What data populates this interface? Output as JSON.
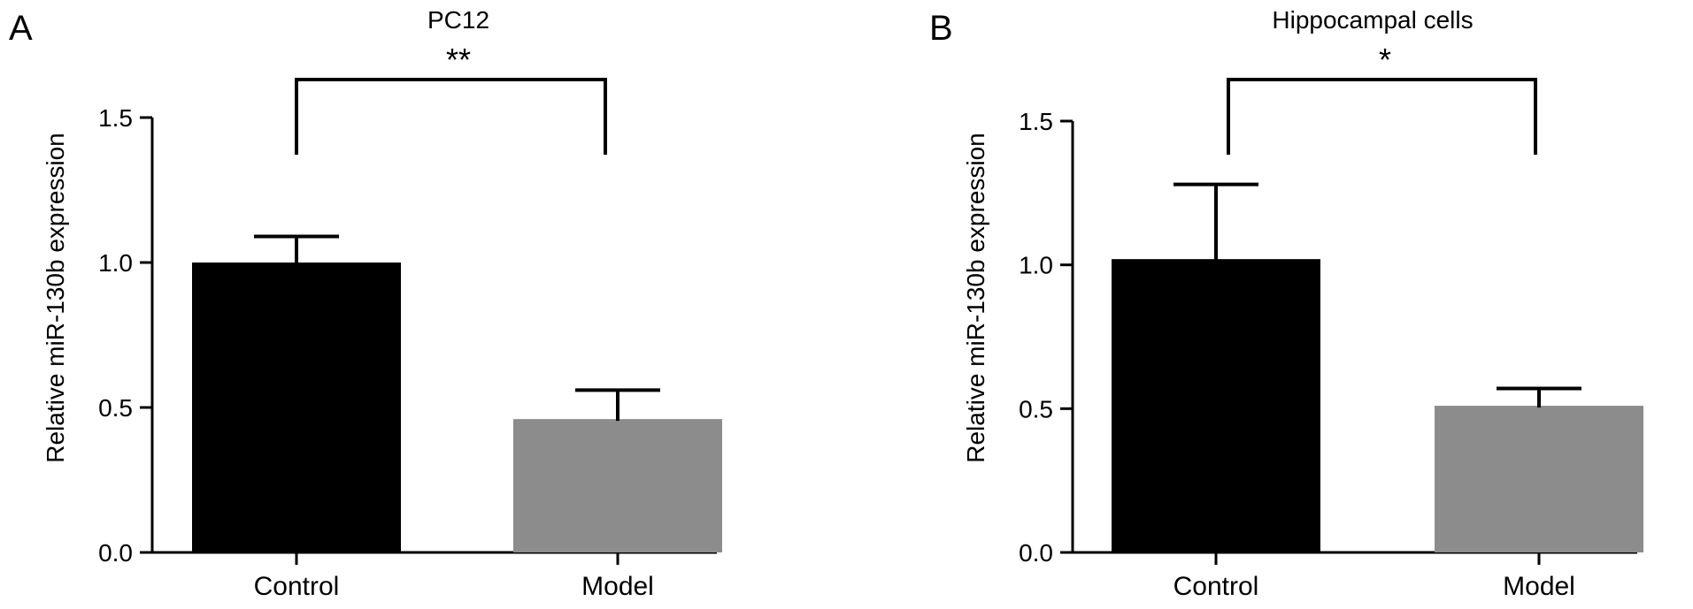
{
  "chart_data": [
    {
      "type": "bar",
      "panel": "A",
      "title": "PC12",
      "ylabel": "Relative miR-130b expression",
      "xlabel": "",
      "categories": [
        "Control",
        "Model"
      ],
      "values": [
        1.0,
        0.46
      ],
      "errors": [
        0.09,
        0.1
      ],
      "ylim": [
        0.0,
        1.5
      ],
      "yticks": [
        "0.0",
        "0.5",
        "1.0",
        "1.5"
      ],
      "significance": "**",
      "colors": [
        "#000000",
        "#8c8c8c"
      ],
      "grid": false,
      "legend": "none"
    },
    {
      "type": "bar",
      "panel": "B",
      "title": "Hippocampal cells",
      "ylabel": "Relative miR-130b expression",
      "xlabel": "",
      "categories": [
        "Control",
        "Model"
      ],
      "values": [
        1.02,
        0.51
      ],
      "errors": [
        0.26,
        0.06
      ],
      "ylim": [
        0.0,
        1.5
      ],
      "yticks": [
        "0.0",
        "0.5",
        "1.0",
        "1.5"
      ],
      "significance": "*",
      "colors": [
        "#000000",
        "#8c8c8c"
      ],
      "grid": false,
      "legend": "none"
    }
  ]
}
